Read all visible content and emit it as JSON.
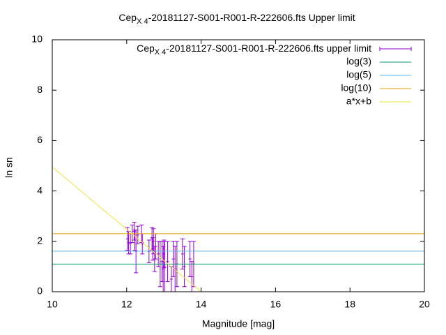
{
  "chart_data": {
    "type": "errorbar",
    "title": {
      "main": "Cep",
      "subscript": "X 4",
      "rest": "-20181127-S001-R001-R-222606.fts Upper limit"
    },
    "x_label": "Magnitude [mag]",
    "y_label": "ln sn",
    "xlim": [
      10,
      20
    ],
    "ylim": [
      0,
      10
    ],
    "xticks": [
      10,
      12,
      14,
      16,
      18,
      20
    ],
    "yticks": [
      0,
      2,
      4,
      6,
      8,
      10
    ],
    "series": [
      {
        "name": {
          "main": "Cep",
          "subscript": "X 4",
          "rest": "-20181127-S001-R001-R-222606.fts upper limit"
        },
        "color": "#9400d3",
        "style": "errorbars",
        "x": [
          12.02,
          12.05,
          12.1,
          12.15,
          12.2,
          12.22,
          12.25,
          12.3,
          12.4,
          12.42,
          12.6,
          12.68,
          12.7,
          12.72,
          12.75,
          12.78,
          12.85,
          12.9,
          12.95,
          12.98,
          13.0,
          13.02,
          13.1,
          13.2,
          13.25,
          13.3,
          13.35,
          13.5,
          13.55,
          13.7,
          13.75,
          13.8
        ],
        "values": [
          2.1,
          1.95,
          1.9,
          2.3,
          2.4,
          2.05,
          1.6,
          2.25,
          2.3,
          1.9,
          1.6,
          2.1,
          1.7,
          2.0,
          1.3,
          1.8,
          1.5,
          1.1,
          1.2,
          0.9,
          1.5,
          1.0,
          1.2,
          0.5,
          1.3,
          0.9,
          1.1,
          1.5,
          1.0,
          1.3,
          0.6,
          1.1
        ],
        "errors": [
          0.45,
          0.45,
          0.4,
          0.35,
          0.35,
          0.4,
          0.85,
          0.35,
          0.35,
          0.4,
          0.45,
          0.45,
          0.45,
          0.5,
          0.5,
          0.5,
          0.5,
          0.9,
          0.8,
          0.9,
          0.55,
          1.0,
          0.8,
          0.5,
          0.7,
          0.9,
          0.9,
          0.6,
          0.8,
          0.7,
          0.6,
          0.9
        ]
      },
      {
        "name": "log(3)",
        "color": "#009e73",
        "style": "line",
        "x": [
          10,
          20
        ],
        "values": [
          1.0986,
          1.0986
        ]
      },
      {
        "name": "log(5)",
        "color": "#56b4e9",
        "style": "line",
        "x": [
          10,
          20
        ],
        "values": [
          1.6094,
          1.6094
        ]
      },
      {
        "name": "log(10)",
        "color": "#e69f00",
        "style": "line",
        "x": [
          10,
          20
        ],
        "values": [
          2.3026,
          2.3026
        ]
      },
      {
        "name": "a*x+b",
        "color": "#f0e442",
        "style": "line",
        "x": [
          10,
          14
        ],
        "values": [
          4.95,
          0
        ]
      }
    ]
  }
}
